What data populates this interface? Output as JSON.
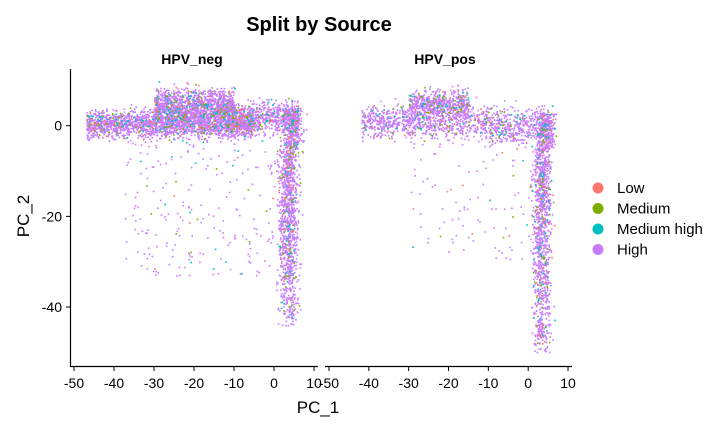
{
  "chart_data": {
    "type": "scatter",
    "title": "Split by Source",
    "xlabel": "PC_1",
    "ylabel": "PC_2",
    "xlim": [
      -51,
      11
    ],
    "ylim": [
      -53,
      12.5
    ],
    "x_ticks": [
      "-50",
      "-40",
      "-30",
      "-20",
      "-10",
      "0",
      "10"
    ],
    "y_ticks": [
      "0",
      "-20",
      "-40"
    ],
    "grid": false,
    "legend_position": "right",
    "facets": [
      {
        "name": "HPV_neg",
        "clusters": [
          {
            "label": "upper-left band",
            "x_range": [
              -47,
              -5
            ],
            "y_center": 0.5,
            "y_spread": 2.5,
            "n": 2200
          },
          {
            "label": "dense hump",
            "x_range": [
              -30,
              -10
            ],
            "y_center": 4.5,
            "y_spread": 3.0,
            "n": 1400
          },
          {
            "label": "right ridge",
            "x_range": [
              -12,
              6
            ],
            "y_center": 2.0,
            "y_spread": 3.0,
            "n": 700
          },
          {
            "label": "vertical column",
            "x_range": [
              1,
              6
            ],
            "y_range": [
              -44,
              4
            ],
            "n": 1500
          },
          {
            "label": "scattered interior",
            "x_range": [
              -38,
              0
            ],
            "y_range": [
              -33,
              -3
            ],
            "n": 220
          }
        ]
      },
      {
        "name": "HPV_pos",
        "clusters": [
          {
            "label": "upper band",
            "x_range": [
              -42,
              -10
            ],
            "y_center": 1.0,
            "y_spread": 3.0,
            "n": 900
          },
          {
            "label": "dense hump",
            "x_range": [
              -30,
              -15
            ],
            "y_center": 5.0,
            "y_spread": 2.5,
            "n": 600
          },
          {
            "label": "right ridge",
            "x_range": [
              -10,
              6
            ],
            "y_center": 0.0,
            "y_spread": 3.5,
            "n": 500
          },
          {
            "label": "vertical column",
            "x_range": [
              1,
              5.5
            ],
            "y_range": [
              -50,
              3
            ],
            "n": 1400
          },
          {
            "label": "scattered interior",
            "x_range": [
              -30,
              0
            ],
            "y_range": [
              -30,
              -3
            ],
            "n": 90
          }
        ]
      }
    ],
    "series": [
      {
        "name": "Low",
        "color": "#F8766D",
        "share": 0.03
      },
      {
        "name": "Medium",
        "color": "#7CAE00",
        "share": 0.04
      },
      {
        "name": "Medium high",
        "color": "#00BFC4",
        "share": 0.05
      },
      {
        "name": "High",
        "color": "#C77CFF",
        "share": 0.88
      }
    ]
  }
}
